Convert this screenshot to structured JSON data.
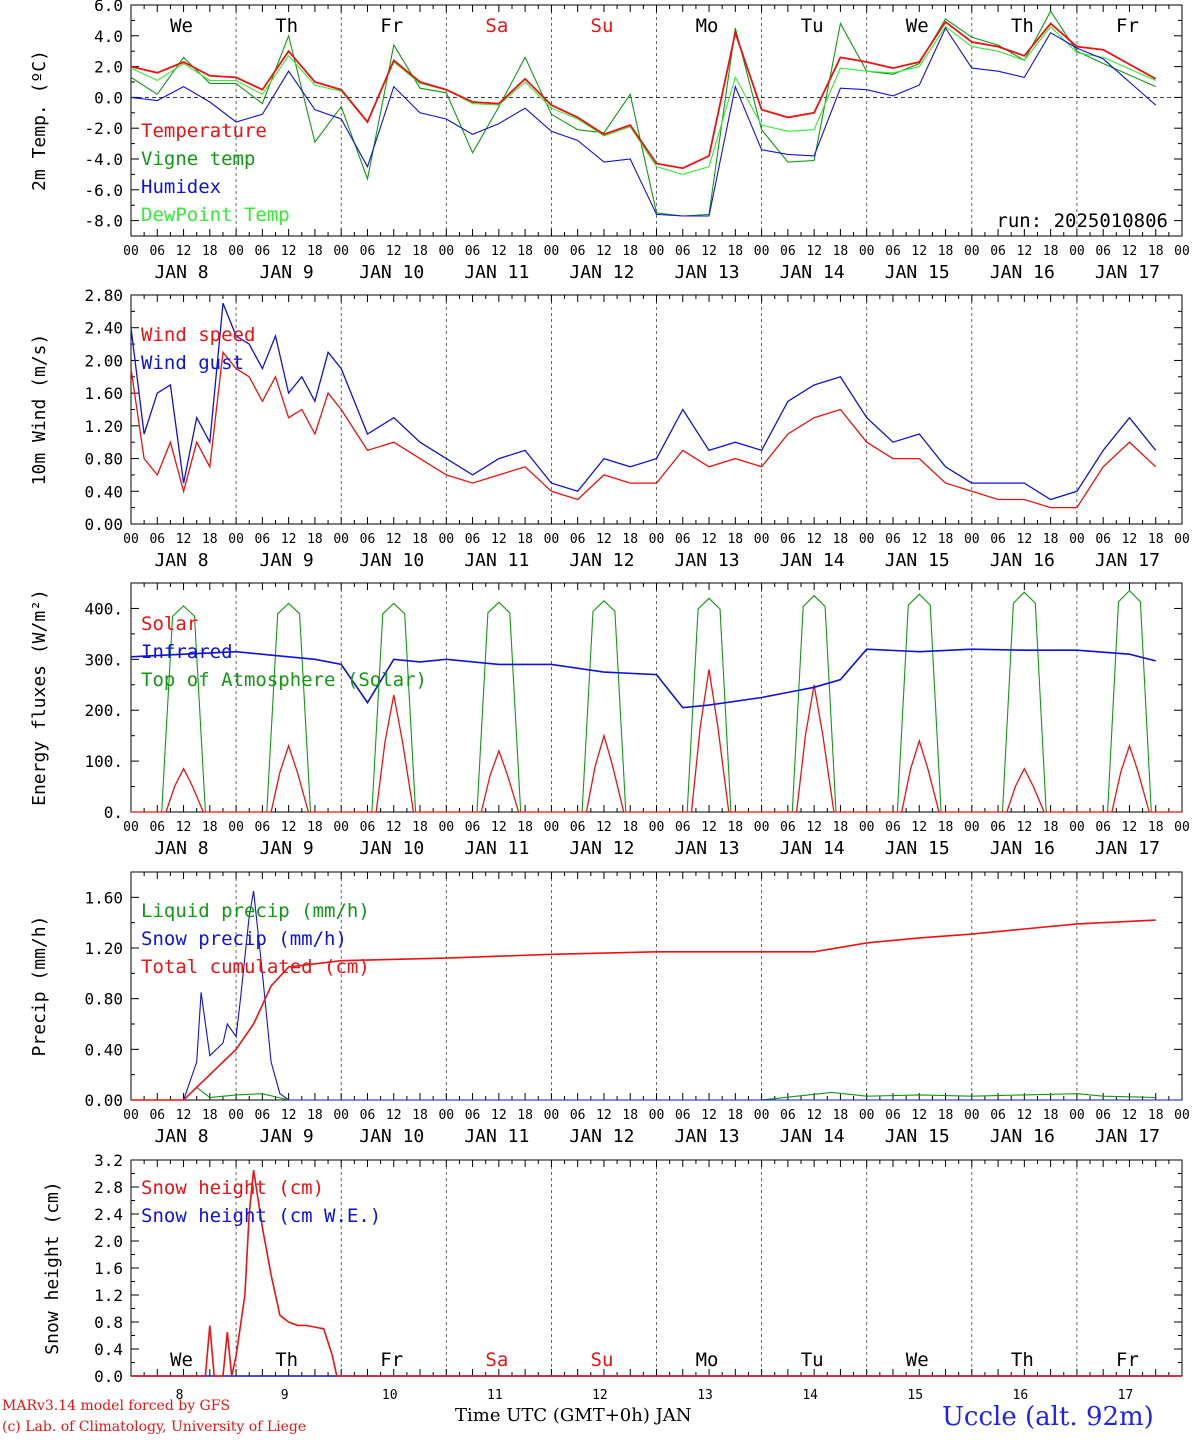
{
  "run_label": "run: 2025010806",
  "footer": {
    "model": "MARv3.14 model forced by GFS",
    "copyright": "(c) Lab. of Climatology, University of Liege",
    "x_title": "Time UTC (GMT+0h) JAN",
    "station": "Uccle (alt. 92m)"
  },
  "days": {
    "weekday_labels": [
      "We",
      "Th",
      "Fr",
      "Sa",
      "Su",
      "Mo",
      "Tu",
      "We",
      "Th",
      "Fr"
    ],
    "weekend_color": "#ee1111",
    "date_labels": [
      "JAN  8",
      "JAN  9",
      "JAN 10",
      "JAN 11",
      "JAN 12",
      "JAN 13",
      "JAN 14",
      "JAN 15",
      "JAN 16",
      "JAN 17"
    ],
    "day_numbers": [
      "8",
      "9",
      "10",
      "11",
      "12",
      "13",
      "14",
      "15",
      "16",
      "17"
    ],
    "hour_ticks": [
      "00",
      "06",
      "12",
      "18"
    ]
  },
  "colors": {
    "red": "#ee1111",
    "green": "#119911",
    "blue": "#1111dd",
    "lightgreen": "#33ee33"
  },
  "chart_data": [
    {
      "type": "line",
      "ylabel": "2m Temp. (ºC)",
      "ylim": [
        -9,
        6
      ],
      "yticks": [
        "-8.0",
        "-6.0",
        "-4.0",
        "-2.0",
        "0.0",
        "2.0",
        "4.0",
        "6.0"
      ],
      "x_unit": "hours since Jan 8 00 UTC",
      "series": [
        {
          "name": "Temperature",
          "color": "red",
          "x": [
            0,
            6,
            12,
            18,
            24,
            30,
            36,
            42,
            48,
            54,
            60,
            66,
            72,
            78,
            84,
            90,
            96,
            102,
            108,
            114,
            120,
            126,
            132,
            138,
            144,
            150,
            156,
            162,
            168,
            174,
            180,
            186,
            192,
            198,
            204,
            210,
            216,
            222,
            234
          ],
          "y": [
            2.0,
            1.6,
            2.3,
            1.4,
            1.3,
            0.5,
            3.0,
            1.0,
            0.5,
            -1.6,
            2.4,
            1.0,
            0.5,
            -0.3,
            -0.4,
            1.2,
            -0.5,
            -1.3,
            -2.4,
            -1.8,
            -4.3,
            -4.6,
            -3.8,
            4.2,
            -0.8,
            -1.3,
            -1.0,
            2.6,
            2.3,
            1.9,
            2.3,
            4.9,
            3.6,
            3.3,
            2.7,
            4.8,
            3.3,
            3.1,
            1.2
          ]
        },
        {
          "name": "Vigne temp",
          "color": "green",
          "x": [
            0,
            6,
            12,
            18,
            24,
            30,
            36,
            42,
            48,
            54,
            60,
            66,
            72,
            78,
            84,
            90,
            96,
            102,
            108,
            114,
            120,
            126,
            132,
            138,
            144,
            150,
            156,
            162,
            168,
            174,
            180,
            186,
            192,
            198,
            204,
            210,
            216,
            222,
            234
          ],
          "y": [
            1.3,
            0.2,
            2.6,
            0.9,
            0.9,
            -0.4,
            4.0,
            -2.9,
            -0.6,
            -5.3,
            3.4,
            0.6,
            0.3,
            -3.6,
            -0.6,
            2.6,
            -1.1,
            -2.1,
            -2.3,
            0.2,
            -7.5,
            -7.7,
            -7.6,
            4.5,
            -2.1,
            -4.2,
            -4.1,
            4.8,
            1.7,
            1.5,
            2.2,
            5.1,
            3.9,
            3.4,
            2.4,
            5.6,
            3.0,
            2.2,
            0.7
          ]
        },
        {
          "name": "Humidex",
          "color": "blue",
          "x": [
            0,
            6,
            12,
            18,
            24,
            30,
            36,
            42,
            48,
            54,
            60,
            66,
            72,
            78,
            84,
            90,
            96,
            102,
            108,
            114,
            120,
            126,
            132,
            138,
            144,
            150,
            156,
            162,
            168,
            174,
            180,
            186,
            192,
            198,
            204,
            210,
            216,
            222,
            234
          ],
          "y": [
            0.0,
            -0.2,
            0.7,
            -0.3,
            -1.6,
            -1.1,
            1.7,
            -0.8,
            -1.4,
            -4.5,
            0.7,
            -1.0,
            -1.4,
            -2.4,
            -1.7,
            -0.7,
            -2.2,
            -2.8,
            -4.2,
            -4.0,
            -7.6,
            -7.7,
            -7.7,
            0.7,
            -3.4,
            -3.7,
            -3.8,
            0.6,
            0.5,
            0.1,
            0.8,
            4.5,
            1.9,
            1.7,
            1.3,
            4.2,
            3.2,
            2.5,
            -0.5
          ]
        },
        {
          "name": "DewPoint Temp",
          "color": "lightgreen",
          "x": [
            0,
            6,
            12,
            18,
            24,
            30,
            36,
            42,
            48,
            54,
            60,
            66,
            72,
            78,
            84,
            90,
            96,
            102,
            108,
            114,
            120,
            126,
            132,
            138,
            144,
            150,
            156,
            162,
            168,
            174,
            180,
            186,
            192,
            198,
            204,
            210,
            216,
            222,
            234
          ],
          "y": [
            1.9,
            1.1,
            2.2,
            1.1,
            1.1,
            0.2,
            2.7,
            0.8,
            0.4,
            -1.6,
            2.3,
            0.9,
            0.5,
            -0.4,
            -0.5,
            1.0,
            -0.7,
            -1.4,
            -2.5,
            -1.9,
            -4.5,
            -5.0,
            -4.5,
            1.3,
            -1.8,
            -2.2,
            -2.1,
            1.9,
            1.7,
            1.6,
            2.0,
            4.6,
            3.3,
            3.0,
            2.4,
            4.6,
            2.9,
            2.6,
            1.1
          ]
        }
      ],
      "zero_line": 0,
      "grid": "vertical day lines"
    },
    {
      "type": "line",
      "ylabel": "10m Wind (m/s)",
      "ylim": [
        0,
        2.8
      ],
      "yticks": [
        "0.00",
        "0.40",
        "0.80",
        "1.20",
        "1.60",
        "2.00",
        "2.40",
        "2.80"
      ],
      "series": [
        {
          "name": "Wind speed",
          "color": "red",
          "x": [
            0,
            3,
            6,
            9,
            12,
            15,
            18,
            21,
            24,
            27,
            30,
            33,
            36,
            39,
            42,
            45,
            48,
            54,
            60,
            66,
            72,
            78,
            84,
            90,
            96,
            102,
            108,
            114,
            120,
            126,
            132,
            138,
            144,
            150,
            156,
            162,
            168,
            174,
            180,
            186,
            192,
            198,
            204,
            210,
            216,
            222,
            228,
            234
          ],
          "y": [
            1.9,
            0.8,
            0.6,
            1.0,
            0.4,
            1.0,
            0.7,
            2.1,
            1.9,
            1.8,
            1.5,
            1.8,
            1.3,
            1.4,
            1.1,
            1.6,
            1.4,
            0.9,
            1.0,
            0.8,
            0.6,
            0.5,
            0.6,
            0.7,
            0.4,
            0.3,
            0.6,
            0.5,
            0.5,
            0.9,
            0.7,
            0.8,
            0.7,
            1.1,
            1.3,
            1.4,
            1.0,
            0.8,
            0.8,
            0.5,
            0.4,
            0.3,
            0.3,
            0.2,
            0.2,
            0.7,
            1.0,
            0.7
          ]
        },
        {
          "name": "Wind gust",
          "color": "blue",
          "x": [
            0,
            3,
            6,
            9,
            12,
            15,
            18,
            21,
            24,
            27,
            30,
            33,
            36,
            39,
            42,
            45,
            48,
            54,
            60,
            66,
            72,
            78,
            84,
            90,
            96,
            102,
            108,
            114,
            120,
            126,
            132,
            138,
            144,
            150,
            156,
            162,
            168,
            174,
            180,
            186,
            192,
            198,
            204,
            210,
            216,
            222,
            228,
            234
          ],
          "y": [
            2.4,
            1.1,
            1.6,
            1.7,
            0.5,
            1.3,
            1.0,
            2.7,
            2.3,
            2.2,
            1.9,
            2.3,
            1.6,
            1.8,
            1.5,
            2.1,
            1.9,
            1.1,
            1.3,
            1.0,
            0.8,
            0.6,
            0.8,
            0.9,
            0.5,
            0.4,
            0.8,
            0.7,
            0.8,
            1.4,
            0.9,
            1.0,
            0.9,
            1.5,
            1.7,
            1.8,
            1.3,
            1.0,
            1.1,
            0.7,
            0.5,
            0.5,
            0.5,
            0.3,
            0.4,
            0.9,
            1.3,
            0.9
          ]
        }
      ]
    },
    {
      "type": "line",
      "ylabel": "Energy fluxes (W/m²)",
      "ylim": [
        0,
        450
      ],
      "yticks": [
        "0.",
        "100.",
        "200.",
        "300.",
        "400."
      ],
      "series": [
        {
          "name": "Solar",
          "color": "red",
          "day_peaks": [
            85,
            130,
            230,
            120,
            150,
            280,
            250,
            140,
            85,
            130
          ]
        },
        {
          "name": "Infrared",
          "color": "blue",
          "x": [
            0,
            12,
            24,
            36,
            42,
            48,
            54,
            60,
            66,
            72,
            84,
            96,
            108,
            120,
            126,
            132,
            144,
            150,
            156,
            162,
            168,
            180,
            192,
            204,
            216,
            228,
            234
          ],
          "y": [
            305,
            310,
            315,
            305,
            300,
            290,
            215,
            300,
            295,
            300,
            290,
            290,
            275,
            270,
            205,
            210,
            225,
            235,
            245,
            260,
            320,
            315,
            320,
            318,
            318,
            310,
            297
          ]
        },
        {
          "name": "Top of Atmosphere (Solar)",
          "color": "green",
          "day_peaks": [
            405,
            410,
            410,
            412,
            415,
            420,
            425,
            428,
            432,
            435
          ]
        }
      ]
    },
    {
      "type": "line",
      "ylabel": "Precip (mm/h)",
      "ylim": [
        0,
        1.8
      ],
      "yticks": [
        "0.00",
        "0.40",
        "0.80",
        "1.20",
        "1.60"
      ],
      "series": [
        {
          "name": "Liquid precip (mm/h)",
          "color": "green",
          "x": [
            0,
            12,
            15,
            18,
            24,
            30,
            36,
            144,
            160,
            168,
            180,
            192,
            204,
            216,
            222,
            234
          ],
          "y": [
            0,
            0,
            0.1,
            0.02,
            0.04,
            0.05,
            0,
            0,
            0.06,
            0.03,
            0.04,
            0.03,
            0.04,
            0.05,
            0.03,
            0.02
          ]
        },
        {
          "name": "Snow precip (mm/h)",
          "color": "blue",
          "x": [
            0,
            12,
            15,
            16,
            18,
            21,
            22,
            24,
            25,
            27,
            28,
            30,
            32,
            34,
            36,
            240
          ],
          "y": [
            0,
            0,
            0.3,
            0.85,
            0.35,
            0.45,
            0.6,
            0.5,
            0.8,
            1.45,
            1.65,
            1.0,
            0.3,
            0.05,
            0,
            0
          ]
        },
        {
          "name": "Total cumulated (cm)",
          "color": "red",
          "x": [
            0,
            12,
            18,
            24,
            28,
            32,
            36,
            48,
            72,
            96,
            120,
            144,
            156,
            168,
            180,
            192,
            204,
            216,
            234
          ],
          "y": [
            0,
            0,
            0.2,
            0.4,
            0.6,
            0.9,
            1.05,
            1.1,
            1.12,
            1.15,
            1.17,
            1.17,
            1.17,
            1.24,
            1.28,
            1.31,
            1.35,
            1.39,
            1.42
          ]
        }
      ]
    },
    {
      "type": "line",
      "ylabel": "Snow height (cm)",
      "ylim": [
        0,
        3.2
      ],
      "yticks": [
        "0.0",
        "0.4",
        "0.8",
        "1.2",
        "1.6",
        "2.0",
        "2.4",
        "2.8",
        "3.2"
      ],
      "series": [
        {
          "name": "Snow height (cm)",
          "color": "red",
          "x": [
            0,
            17,
            18,
            19,
            21,
            22,
            23,
            24,
            26,
            27,
            28,
            30,
            32,
            34,
            36,
            38,
            40,
            44,
            46,
            47,
            240
          ],
          "y": [
            0,
            0,
            0.75,
            0,
            0,
            0.65,
            0,
            0.3,
            1.2,
            2.4,
            3.05,
            2.2,
            1.5,
            0.9,
            0.8,
            0.75,
            0.75,
            0.7,
            0.3,
            0,
            0
          ]
        },
        {
          "name": "Snow height (cm W.E.)",
          "color": "blue",
          "x": [
            0,
            240
          ],
          "y": [
            0,
            0
          ]
        }
      ]
    }
  ]
}
